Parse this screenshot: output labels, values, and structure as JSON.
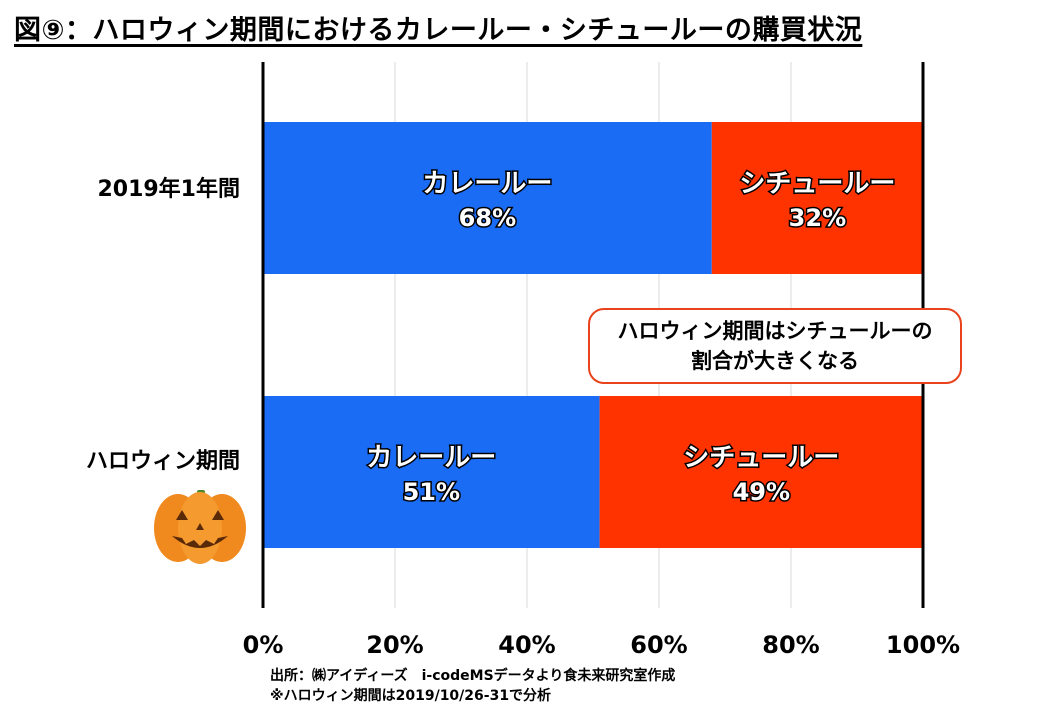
{
  "title": "図⑨：ハロウィン期間におけるカレールー・シチュールーの購買状況",
  "chart_data": {
    "type": "bar",
    "orientation": "horizontal",
    "stacked": "percent",
    "categories": [
      "2019年1年間",
      "ハロウィン期間"
    ],
    "series": [
      {
        "name": "カレールー",
        "values": [
          68,
          51
        ],
        "color": "#1a6cf5"
      },
      {
        "name": "シチュールー",
        "values": [
          32,
          49
        ],
        "color": "#ff3300"
      }
    ],
    "xlim": [
      0,
      100
    ],
    "xticks": [
      0,
      20,
      40,
      60,
      80,
      100
    ],
    "tick_suffix": "%",
    "grid": true,
    "annotation": [
      "ハロウィン期間はシチュールーの",
      "割合が大きくなる"
    ]
  },
  "footer": {
    "line1": "出所：㈱アイディーズ　i-codeMSデータより食未来研究室作成",
    "line2": "※ハロウィン期間は2019/10/26-31で分析"
  },
  "decor": {
    "pumpkin_icon": "jack-o-lantern-icon"
  }
}
